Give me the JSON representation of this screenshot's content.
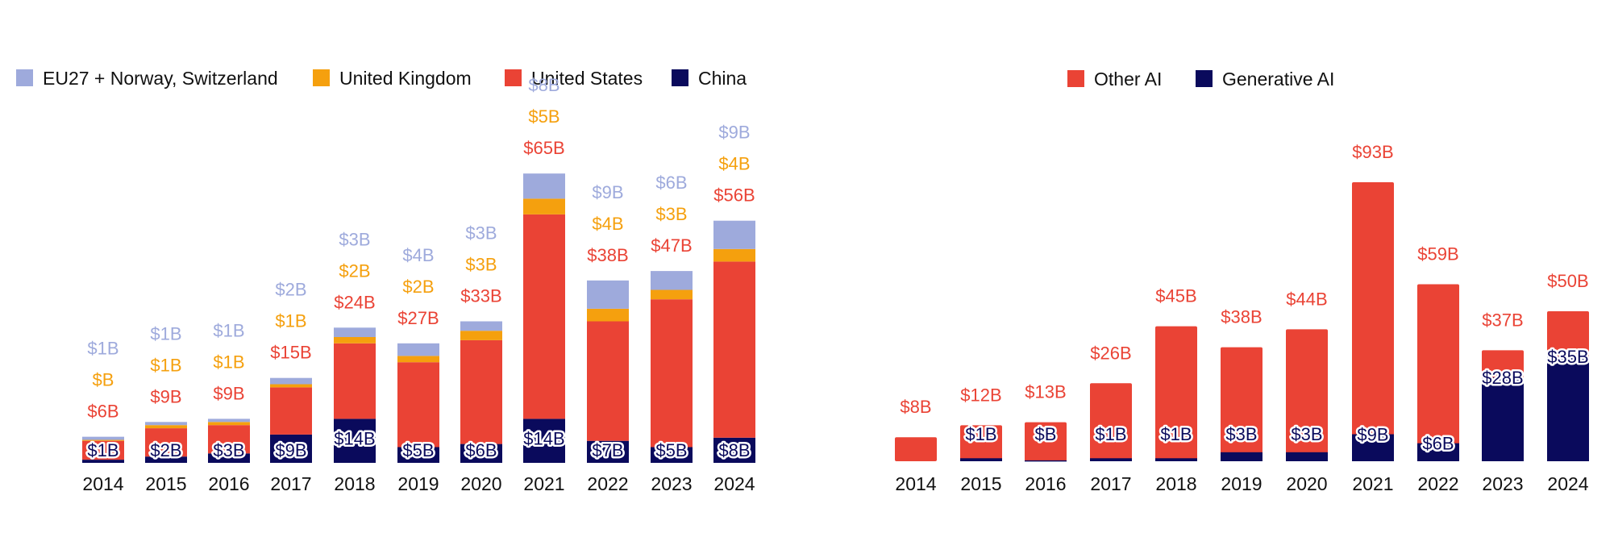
{
  "colors": {
    "eu": "#9eaadc",
    "uk": "#f5a00e",
    "us": "#ea4335",
    "china": "#0a0a5c",
    "other_ai": "#ea4335",
    "generative_ai": "#0a0a5c"
  },
  "chart_data": [
    {
      "type": "bar",
      "stacked": true,
      "title": "",
      "xlabel": "",
      "ylabel": "",
      "legend_position": "top-left",
      "categories": [
        "2014",
        "2015",
        "2016",
        "2017",
        "2018",
        "2019",
        "2020",
        "2021",
        "2022",
        "2023",
        "2024"
      ],
      "series": [
        {
          "name": "China",
          "values": [
            1,
            2,
            3,
            9,
            14,
            5,
            6,
            14,
            7,
            5,
            8
          ],
          "labels": [
            "$1B",
            "$2B",
            "$3B",
            "$9B",
            "$14B",
            "$5B",
            "$6B",
            "$14B",
            "$7B",
            "$5B",
            "$8B"
          ]
        },
        {
          "name": "United States",
          "values": [
            6,
            9,
            9,
            15,
            24,
            27,
            33,
            65,
            38,
            47,
            56
          ],
          "labels": [
            "$6B",
            "$9B",
            "$9B",
            "$15B",
            "$24B",
            "$27B",
            "$33B",
            "$65B",
            "$38B",
            "$47B",
            "$56B"
          ]
        },
        {
          "name": "United Kingdom",
          "values": [
            0.3,
            1,
            1,
            1,
            2,
            2,
            3,
            5,
            4,
            3,
            4
          ],
          "labels": [
            "$B",
            "$1B",
            "$1B",
            "$1B",
            "$2B",
            "$2B",
            "$3B",
            "$5B",
            "$4B",
            "$3B",
            "$4B"
          ]
        },
        {
          "name": "EU27 + Norway, Switzerland",
          "values": [
            1,
            1,
            1,
            2,
            3,
            4,
            3,
            8,
            9,
            6,
            9
          ],
          "labels": [
            "$1B",
            "$1B",
            "$1B",
            "$2B",
            "$3B",
            "$4B",
            "$3B",
            "$8B",
            "$9B",
            "$6B",
            "$9B"
          ]
        }
      ]
    },
    {
      "type": "bar",
      "stacked": true,
      "title": "",
      "xlabel": "",
      "ylabel": "",
      "legend_position": "top-center",
      "categories": [
        "2014",
        "2015",
        "2016",
        "2017",
        "2018",
        "2019",
        "2020",
        "2021",
        "2022",
        "2023",
        "2024"
      ],
      "series": [
        {
          "name": "Generative AI",
          "values": [
            0,
            1,
            0.3,
            1,
            1,
            3,
            3,
            9,
            6,
            28,
            35
          ],
          "labels": [
            "",
            "$1B",
            "$B",
            "$1B",
            "$1B",
            "$3B",
            "$3B",
            "$9B",
            "$6B",
            "$28B",
            "$35B"
          ]
        },
        {
          "name": "Other AI",
          "values": [
            8,
            12,
            13,
            26,
            45,
            38,
            44,
            93,
            59,
            37,
            50
          ],
          "labels": [
            "$8B",
            "$12B",
            "$13B",
            "$26B",
            "$45B",
            "$38B",
            "$44B",
            "$93B",
            "$59B",
            "$37B",
            "$50B"
          ]
        }
      ]
    }
  ]
}
